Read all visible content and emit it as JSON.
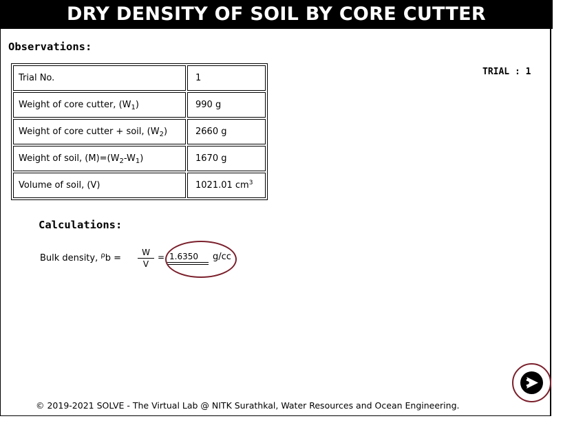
{
  "header": {
    "title": "DRY DENSITY OF SOIL BY CORE CUTTER"
  },
  "observations": {
    "title": "Observations:",
    "trial_label": "TRIAL : 1",
    "rows": [
      {
        "label": "Trial No.",
        "value": "1"
      },
      {
        "label_prefix": "Weight of core cutter, (W",
        "label_sub": "1",
        "label_suffix": ")",
        "value": "990 g"
      },
      {
        "label_prefix": "Weight of core cutter + soil, (W",
        "label_sub": "2",
        "label_suffix": ")",
        "value": "2660 g"
      },
      {
        "label_prefix": "Weight of soil, (M)=(W",
        "label_sub": "2",
        "label_mid": "-W",
        "label_sub2": "1",
        "label_suffix": ")",
        "value": "1670 g"
      },
      {
        "label": "Volume of soil, (V)",
        "value_prefix": "1021.01 cm",
        "value_sup": "3"
      }
    ]
  },
  "calculations": {
    "title": "Calculations:",
    "bulk_label": "Bulk density, ",
    "rho": "ρ",
    "rho_sub": "b",
    "equals": " = ",
    "numerator": "W",
    "denominator": "V",
    "equals2": "=",
    "result_value": "1.6350",
    "unit": "g/cc"
  },
  "footer": {
    "text": "© 2019-2021 SOLVE - The Virtual Lab @ NITK Surathkal, Water Resources and Ocean Engineering."
  },
  "colors": {
    "header_bg": "#000000",
    "highlight_circle": "#7a1f2b"
  },
  "icons": {
    "next": "next-arrow-icon"
  }
}
